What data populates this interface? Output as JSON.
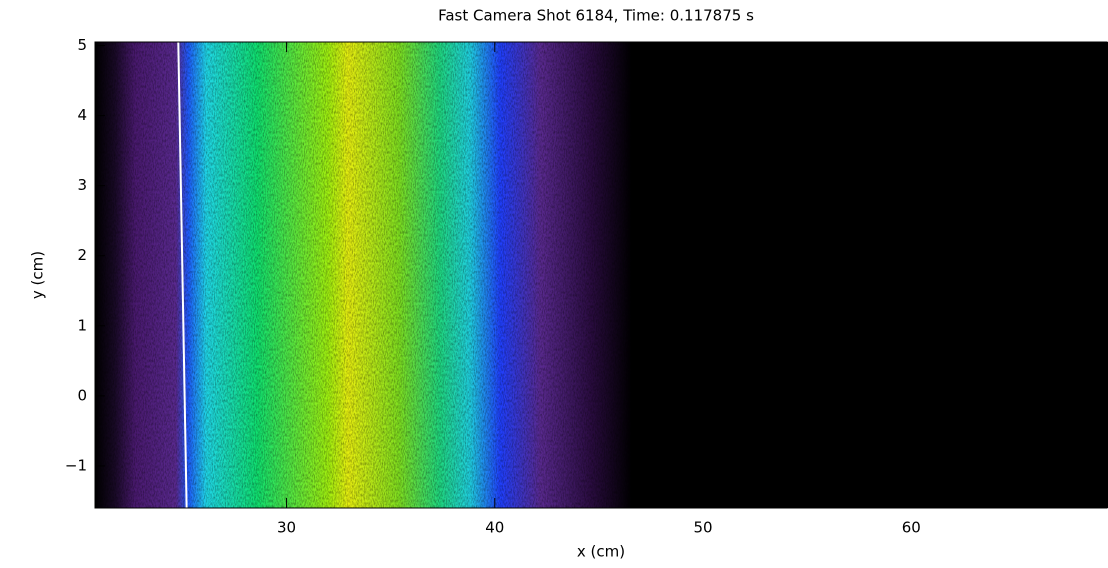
{
  "chart_data": {
    "type": "heatmap",
    "title": "Fast Camera Shot 6184, Time: 0.117875 s",
    "x_label": "x (cm)",
    "y_label": "y (cm)",
    "xlim": [
      20.8,
      69.4
    ],
    "ylim": [
      -1.6,
      5.05
    ],
    "xticks": [
      30,
      40,
      50,
      60
    ],
    "yticks": [
      {
        "value": -1,
        "label": "−1"
      },
      0,
      1,
      2,
      3,
      4,
      5
    ],
    "series": [
      {
        "color": "#ffffff",
        "x": [
          24.8,
          25.2
        ],
        "values": [
          5.05,
          -1.6
        ]
      }
    ]
  }
}
